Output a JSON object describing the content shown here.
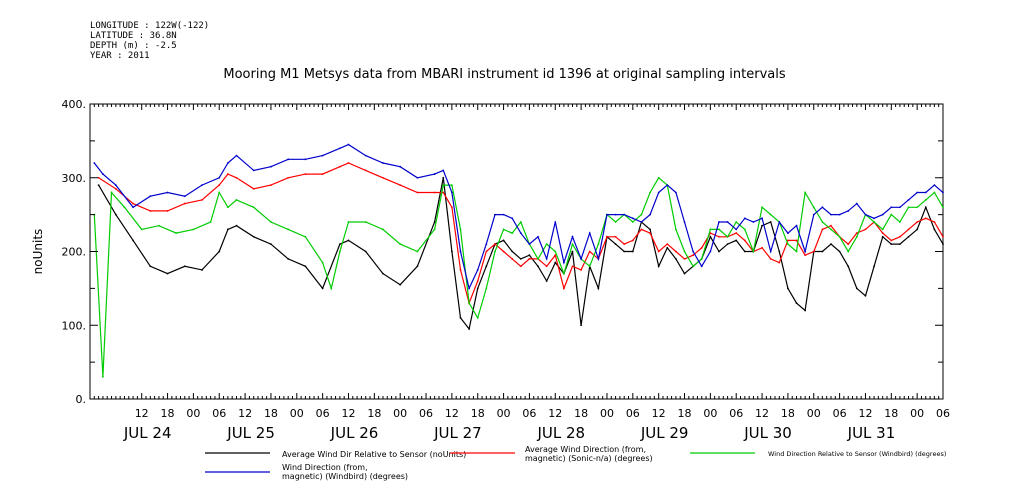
{
  "header": {
    "longitude": "LONGITUDE : 122W(-122)",
    "latitude": "LATITUDE : 36.8N",
    "depth": "DEPTH (m) : -2.5",
    "year": "YEAR : 2011"
  },
  "chart_data": {
    "type": "line",
    "title": "Mooring M1 Metsys data from MBARI instrument id 1396 at original sampling intervals",
    "ylabel": "noUnits",
    "xlabel": "",
    "ylim": [
      0,
      400
    ],
    "yticks": [
      0,
      100,
      200,
      300,
      400
    ],
    "ytick_labels": [
      "0.",
      "100.",
      "200.",
      "300.",
      "400."
    ],
    "xlim": [
      0,
      198
    ],
    "hour_ticks": [
      {
        "x": 12,
        "label": "12"
      },
      {
        "x": 18,
        "label": "18"
      },
      {
        "x": 24,
        "label": "00"
      },
      {
        "x": 30,
        "label": "06"
      },
      {
        "x": 36,
        "label": "12"
      },
      {
        "x": 42,
        "label": "18"
      },
      {
        "x": 48,
        "label": "00"
      },
      {
        "x": 54,
        "label": "06"
      },
      {
        "x": 60,
        "label": "12"
      },
      {
        "x": 66,
        "label": "18"
      },
      {
        "x": 72,
        "label": "00"
      },
      {
        "x": 78,
        "label": "06"
      },
      {
        "x": 84,
        "label": "12"
      },
      {
        "x": 90,
        "label": "18"
      },
      {
        "x": 96,
        "label": "00"
      },
      {
        "x": 102,
        "label": "06"
      },
      {
        "x": 108,
        "label": "12"
      },
      {
        "x": 114,
        "label": "18"
      },
      {
        "x": 120,
        "label": "00"
      },
      {
        "x": 126,
        "label": "06"
      },
      {
        "x": 132,
        "label": "12"
      },
      {
        "x": 138,
        "label": "18"
      },
      {
        "x": 144,
        "label": "00"
      },
      {
        "x": 150,
        "label": "06"
      },
      {
        "x": 156,
        "label": "12"
      },
      {
        "x": 162,
        "label": "18"
      },
      {
        "x": 168,
        "label": "00"
      },
      {
        "x": 174,
        "label": "06"
      },
      {
        "x": 180,
        "label": "12"
      },
      {
        "x": 186,
        "label": "18"
      },
      {
        "x": 192,
        "label": "00"
      },
      {
        "x": 198,
        "label": "06"
      }
    ],
    "day_labels": [
      {
        "x": 12,
        "label": "JUL 24"
      },
      {
        "x": 36,
        "label": "JUL 25"
      },
      {
        "x": 60,
        "label": "JUL 26"
      },
      {
        "x": 84,
        "label": "JUL 27"
      },
      {
        "x": 108,
        "label": "JUL 28"
      },
      {
        "x": 132,
        "label": "JUL 29"
      },
      {
        "x": 156,
        "label": "JUL 30"
      },
      {
        "x": 180,
        "label": "JUL 31"
      }
    ],
    "series": [
      {
        "name": "Average Wind Dir Relative to Sensor (noUnits)",
        "color": "#000000",
        "x": [
          2,
          6,
          10,
          14,
          18,
          22,
          26,
          30,
          32,
          34,
          38,
          42,
          46,
          50,
          54,
          58,
          60,
          64,
          68,
          72,
          76,
          80,
          82,
          84,
          86,
          88,
          90,
          92,
          94,
          96,
          98,
          100,
          102,
          104,
          106,
          108,
          110,
          112,
          114,
          116,
          118,
          120,
          122,
          124,
          126,
          128,
          130,
          132,
          134,
          136,
          138,
          140,
          142,
          144,
          146,
          148,
          150,
          152,
          154,
          156,
          158,
          160,
          162,
          164,
          166,
          168,
          170,
          172,
          174,
          176,
          178,
          180,
          182,
          184,
          186,
          188,
          190,
          192,
          194,
          196,
          198
        ],
        "values": [
          290,
          250,
          215,
          180,
          170,
          180,
          175,
          200,
          230,
          235,
          220,
          210,
          190,
          180,
          150,
          210,
          215,
          200,
          170,
          155,
          180,
          240,
          300,
          200,
          110,
          95,
          150,
          180,
          210,
          215,
          200,
          190,
          195,
          180,
          160,
          185,
          170,
          200,
          100,
          180,
          150,
          220,
          210,
          200,
          200,
          240,
          230,
          180,
          205,
          190,
          170,
          180,
          190,
          220,
          200,
          210,
          215,
          200,
          200,
          235,
          240,
          200,
          150,
          130,
          120,
          200,
          200,
          210,
          200,
          180,
          150,
          140,
          180,
          220,
          210,
          210,
          220,
          230,
          260,
          230,
          210
        ]
      },
      {
        "name": "Average Wind Direction (from, magnetic) (Sonic-n/a) (degrees)",
        "color": "#ff0000",
        "x": [
          2,
          6,
          10,
          14,
          18,
          22,
          26,
          30,
          32,
          34,
          38,
          42,
          46,
          50,
          54,
          58,
          60,
          64,
          68,
          72,
          76,
          80,
          82,
          84,
          86,
          88,
          90,
          92,
          94,
          96,
          98,
          100,
          102,
          104,
          106,
          108,
          110,
          112,
          114,
          116,
          118,
          120,
          122,
          124,
          126,
          128,
          130,
          132,
          134,
          136,
          138,
          140,
          142,
          144,
          146,
          148,
          150,
          152,
          154,
          156,
          158,
          160,
          162,
          164,
          166,
          168,
          170,
          172,
          174,
          176,
          178,
          180,
          182,
          184,
          186,
          188,
          190,
          192,
          194,
          196,
          198
        ],
        "values": [
          300,
          285,
          265,
          255,
          255,
          265,
          270,
          290,
          305,
          300,
          285,
          290,
          300,
          305,
          305,
          315,
          320,
          310,
          300,
          290,
          280,
          280,
          280,
          260,
          175,
          130,
          160,
          200,
          210,
          200,
          190,
          180,
          190,
          190,
          180,
          195,
          150,
          180,
          175,
          200,
          190,
          220,
          220,
          210,
          215,
          230,
          225,
          200,
          210,
          200,
          190,
          195,
          205,
          225,
          220,
          220,
          225,
          215,
          200,
          205,
          190,
          185,
          215,
          215,
          195,
          200,
          230,
          235,
          220,
          210,
          225,
          230,
          240,
          225,
          215,
          220,
          230,
          240,
          245,
          240,
          220
        ]
      },
      {
        "name": "Wind Direction Relative to Sensor (Windbird) (degrees)",
        "color": "#00cc00",
        "x": [
          1,
          3,
          5,
          8,
          12,
          16,
          20,
          24,
          28,
          30,
          32,
          34,
          38,
          42,
          46,
          50,
          54,
          56,
          58,
          60,
          64,
          68,
          72,
          76,
          80,
          82,
          84,
          86,
          88,
          90,
          92,
          94,
          96,
          98,
          100,
          102,
          104,
          106,
          108,
          110,
          112,
          114,
          116,
          118,
          120,
          122,
          124,
          126,
          128,
          130,
          132,
          134,
          136,
          138,
          140,
          142,
          144,
          146,
          148,
          150,
          152,
          154,
          156,
          158,
          160,
          162,
          164,
          166,
          168,
          170,
          172,
          174,
          176,
          178,
          180,
          182,
          184,
          186,
          188,
          190,
          192,
          194,
          196,
          198
        ],
        "values": [
          250,
          30,
          280,
          260,
          230,
          235,
          225,
          230,
          240,
          280,
          260,
          270,
          260,
          240,
          230,
          220,
          185,
          150,
          200,
          240,
          240,
          230,
          210,
          200,
          230,
          290,
          290,
          230,
          130,
          110,
          150,
          200,
          230,
          225,
          240,
          210,
          190,
          210,
          200,
          170,
          210,
          190,
          180,
          210,
          250,
          240,
          250,
          240,
          250,
          280,
          300,
          290,
          230,
          200,
          180,
          190,
          230,
          230,
          220,
          240,
          230,
          200,
          260,
          250,
          240,
          210,
          200,
          280,
          260,
          240,
          230,
          220,
          200,
          220,
          250,
          240,
          230,
          250,
          240,
          260,
          260,
          270,
          280,
          260
        ]
      },
      {
        "name": "Wind Direction (from, magnetic) (Windbird) (degrees)",
        "color": "#0000cc",
        "x": [
          1,
          3,
          6,
          10,
          14,
          18,
          22,
          26,
          30,
          32,
          34,
          38,
          42,
          46,
          50,
          54,
          58,
          60,
          64,
          68,
          72,
          76,
          80,
          82,
          84,
          86,
          88,
          90,
          92,
          94,
          96,
          98,
          100,
          102,
          104,
          106,
          108,
          110,
          112,
          114,
          116,
          118,
          120,
          122,
          124,
          126,
          128,
          130,
          132,
          134,
          136,
          138,
          140,
          142,
          144,
          146,
          148,
          150,
          152,
          154,
          156,
          158,
          160,
          162,
          164,
          166,
          168,
          170,
          172,
          174,
          176,
          178,
          180,
          182,
          184,
          186,
          188,
          190,
          192,
          194,
          196,
          198
        ],
        "values": [
          320,
          305,
          290,
          260,
          275,
          280,
          275,
          290,
          300,
          320,
          330,
          310,
          315,
          325,
          325,
          330,
          340,
          345,
          330,
          320,
          315,
          300,
          305,
          310,
          280,
          200,
          150,
          175,
          210,
          250,
          250,
          245,
          225,
          210,
          220,
          190,
          240,
          185,
          220,
          190,
          225,
          190,
          250,
          250,
          250,
          245,
          240,
          250,
          280,
          290,
          280,
          240,
          200,
          180,
          200,
          240,
          240,
          230,
          245,
          240,
          245,
          200,
          240,
          225,
          235,
          200,
          250,
          260,
          250,
          250,
          255,
          265,
          250,
          245,
          250,
          260,
          260,
          270,
          280,
          280,
          290,
          280
        ]
      }
    ]
  }
}
